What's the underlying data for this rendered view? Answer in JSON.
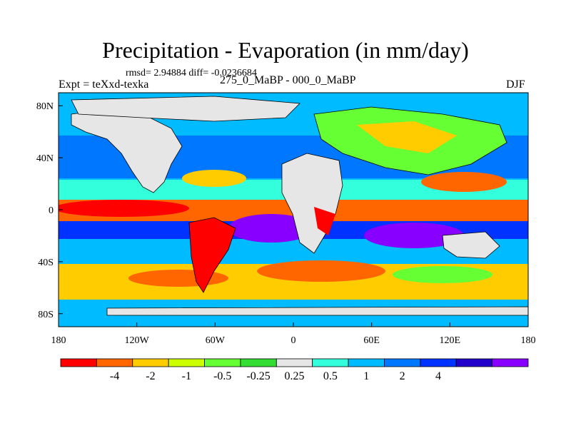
{
  "title": "Precipitation - Evaporation (in mm/day)",
  "stats": "rmsd= 2.94884 diff= -0.0236684",
  "experiment": "Expt = teXxd-texka",
  "comparison": "275_0_MaBP - 000_0_MaBP",
  "season": "DJF",
  "lat_ticks": [
    "80N",
    "40N",
    "0",
    "40S",
    "80S"
  ],
  "lon_ticks": [
    "180",
    "120W",
    "60W",
    "0",
    "60E",
    "120E",
    "180"
  ],
  "colorbar": {
    "labels": [
      "-4",
      "-2",
      "-1",
      "-0.5",
      "-0.25",
      "0.25",
      "0.5",
      "1",
      "2",
      "4"
    ],
    "colors": [
      "#ff0000",
      "#ff6600",
      "#ffcc00",
      "#ccff00",
      "#66ff33",
      "#33dd33",
      "#e6e6e6",
      "#33ffdd",
      "#00bbff",
      "#0077ff",
      "#0033ff",
      "#2200cc",
      "#8800ff"
    ]
  },
  "colors": {
    "land": "#e6e6e6",
    "ocean_default": "#00bbff"
  }
}
